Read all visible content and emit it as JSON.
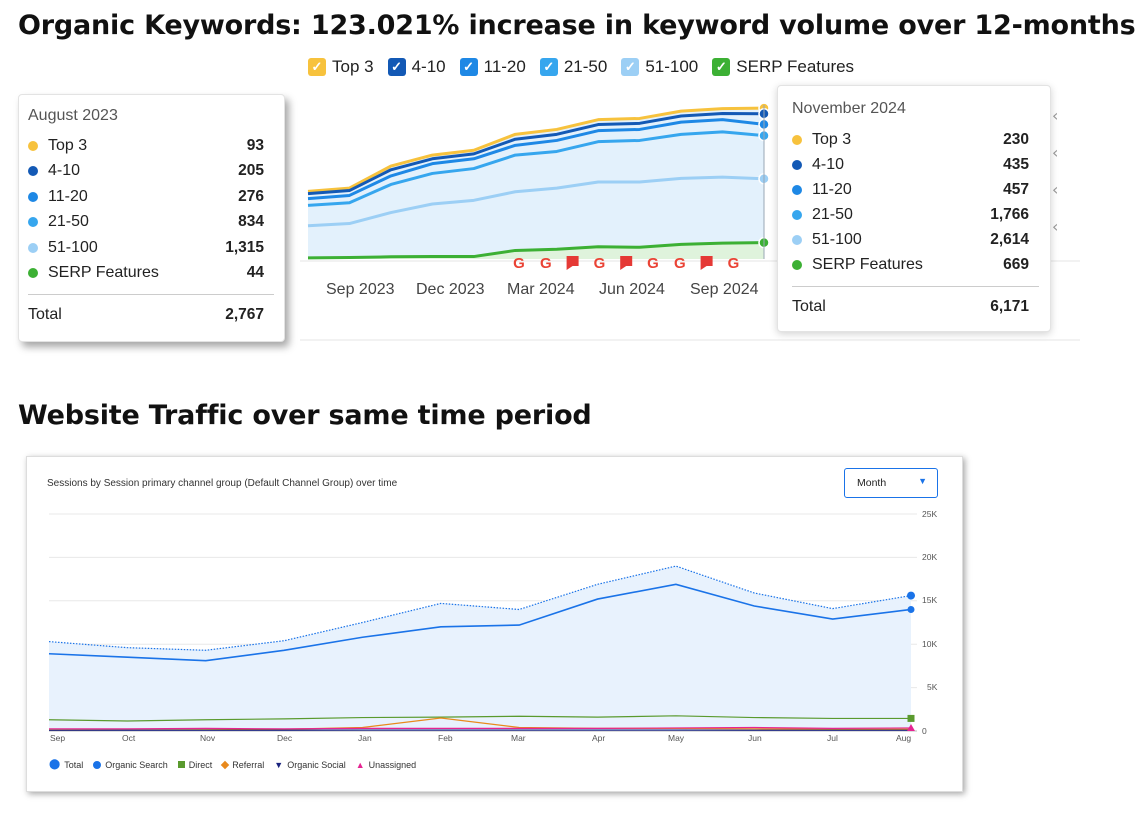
{
  "headings": {
    "keywords": "Organic Keywords: 123.021% increase in keyword volume over 12-months",
    "traffic": "Website Traffic over same time period"
  },
  "legend_top": [
    {
      "label": "Top 3",
      "color": "#f7c23d"
    },
    {
      "label": "4-10",
      "color": "#1359b5"
    },
    {
      "label": "11-20",
      "color": "#1e88e5"
    },
    {
      "label": "21-50",
      "color": "#36a6ee"
    },
    {
      "label": "51-100",
      "color": "#9ccff5"
    },
    {
      "label": "SERP Features",
      "color": "#3cb034"
    }
  ],
  "tooltip_left": {
    "month": "August 2023",
    "rows": [
      {
        "label": "Top 3",
        "value": "93",
        "color": "#f7c23d"
      },
      {
        "label": "4-10",
        "value": "205",
        "color": "#1359b5"
      },
      {
        "label": "11-20",
        "value": "276",
        "color": "#1e88e5"
      },
      {
        "label": "21-50",
        "value": "834",
        "color": "#36a6ee"
      },
      {
        "label": "51-100",
        "value": "1,315",
        "color": "#9ccff5"
      },
      {
        "label": "SERP Features",
        "value": "44",
        "color": "#3cb034"
      }
    ],
    "total_label": "Total",
    "total_value": "2,767"
  },
  "tooltip_right": {
    "month": "November 2024",
    "rows": [
      {
        "label": "Top 3",
        "value": "230",
        "color": "#f7c23d"
      },
      {
        "label": "4-10",
        "value": "435",
        "color": "#1359b5"
      },
      {
        "label": "11-20",
        "value": "457",
        "color": "#1e88e5"
      },
      {
        "label": "21-50",
        "value": "1,766",
        "color": "#36a6ee"
      },
      {
        "label": "51-100",
        "value": "2,614",
        "color": "#9ccff5"
      },
      {
        "label": "SERP Features",
        "value": "669",
        "color": "#3cb034"
      }
    ],
    "total_label": "Total",
    "total_value": "6,171"
  },
  "traffic_panel": {
    "title": "Sessions by Session primary channel group (Default Channel Group) over time",
    "period_select": "Month",
    "legend": [
      {
        "label": "Total",
        "color": "#1a73e8",
        "icon": "pin-icon"
      },
      {
        "label": "Organic Search",
        "color": "#1a73e8",
        "icon": "circle-icon"
      },
      {
        "label": "Direct",
        "color": "#5a9a2e",
        "icon": "square-icon"
      },
      {
        "label": "Referral",
        "color": "#e8891c",
        "icon": "diamond-icon"
      },
      {
        "label": "Organic Social",
        "color": "#1a237e",
        "icon": "triangle-down-icon"
      },
      {
        "label": "Unassigned",
        "color": "#e52592",
        "icon": "triangle-up-icon"
      }
    ]
  },
  "chart_data": [
    {
      "type": "area",
      "title": "",
      "x_ticks": [
        "Sep 2023",
        "Dec 2023",
        "Mar 2024",
        "Jun 2024",
        "Sep 2024"
      ],
      "series": [
        {
          "name": "Top 3",
          "values": [
            2767,
            2900,
            3800,
            4250,
            4450,
            5100,
            5300,
            5700,
            5750,
            6050,
            6150,
            6171
          ]
        },
        {
          "name": "4-10",
          "values": [
            2674,
            2800,
            3650,
            4100,
            4300,
            4900,
            5100,
            5500,
            5550,
            5850,
            5950,
            5941
          ]
        },
        {
          "name": "11-20",
          "values": [
            2469,
            2600,
            3400,
            3900,
            4100,
            4650,
            4850,
            5250,
            5300,
            5600,
            5700,
            5506
          ]
        },
        {
          "name": "21-50",
          "values": [
            2193,
            2300,
            3050,
            3500,
            3700,
            4250,
            4400,
            4800,
            4850,
            5100,
            5200,
            5049
          ]
        },
        {
          "name": "51-100",
          "values": [
            1359,
            1450,
            1900,
            2250,
            2400,
            2750,
            2900,
            3150,
            3150,
            3300,
            3350,
            3283
          ]
        },
        {
          "name": "SERP Features",
          "values": [
            44,
            60,
            90,
            100,
            100,
            350,
            400,
            500,
            480,
            600,
            650,
            669
          ]
        }
      ],
      "serp_markers": [
        "google",
        "google",
        "flag",
        "google",
        "flag",
        "google",
        "google",
        "flag",
        "google"
      ]
    },
    {
      "type": "line",
      "title": "Sessions by Session primary channel group (Default Channel Group) over time",
      "categories": [
        "Sep",
        "Oct",
        "Nov",
        "Dec",
        "Jan",
        "Feb",
        "Mar",
        "Apr",
        "May",
        "Jun",
        "Jul",
        "Aug"
      ],
      "y_ticks": [
        "0",
        "5K",
        "10K",
        "15K",
        "20K",
        "25K"
      ],
      "ylim": [
        0,
        25000
      ],
      "series": [
        {
          "name": "Total",
          "values": [
            10300,
            9600,
            9300,
            10400,
            12500,
            14700,
            14000,
            16900,
            19000,
            15900,
            14100,
            15600
          ]
        },
        {
          "name": "Organic Search",
          "values": [
            8900,
            8500,
            8100,
            9300,
            10800,
            12000,
            12200,
            15200,
            16900,
            14400,
            12900,
            14000
          ]
        },
        {
          "name": "Direct",
          "values": [
            1300,
            1150,
            1300,
            1400,
            1550,
            1600,
            1700,
            1600,
            1750,
            1550,
            1450,
            1450
          ]
        },
        {
          "name": "Referral",
          "values": [
            100,
            120,
            150,
            200,
            400,
            1500,
            400,
            300,
            300,
            250,
            200,
            200
          ]
        },
        {
          "name": "Organic Social",
          "values": [
            80,
            90,
            90,
            90,
            100,
            100,
            100,
            100,
            100,
            90,
            90,
            90
          ]
        },
        {
          "name": "Unassigned",
          "values": [
            250,
            250,
            300,
            250,
            300,
            300,
            300,
            300,
            350,
            400,
            300,
            350
          ]
        }
      ]
    }
  ]
}
